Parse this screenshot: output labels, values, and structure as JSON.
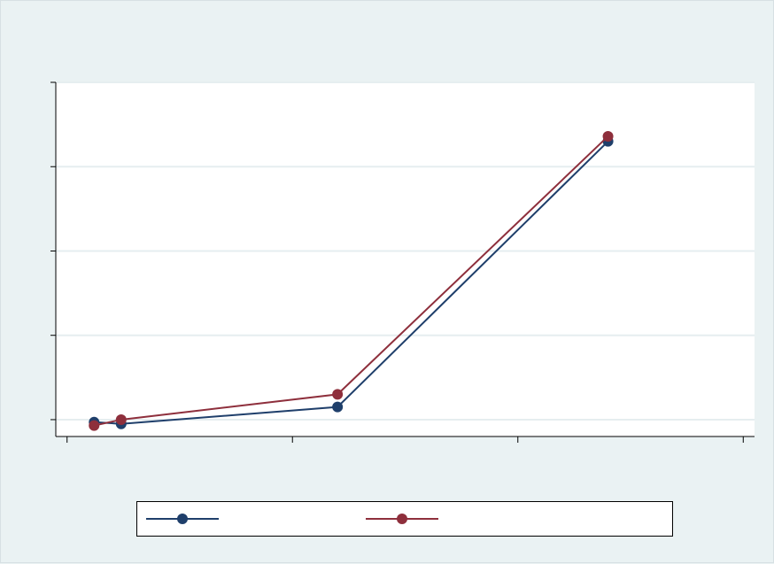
{
  "chart_data": {
    "type": "line",
    "title": "",
    "xlabel": "",
    "ylabel": "",
    "xlim": [
      -0.05,
      3.05
    ],
    "ylim": [
      -0.2,
      4.0
    ],
    "grid": true,
    "legend_position": "bottom",
    "x_ticks": [
      0,
      1,
      2,
      3
    ],
    "y_ticks": [
      0,
      1,
      2,
      3,
      4
    ],
    "series": [
      {
        "color": "#1f3f6b",
        "points": [
          [
            0.12,
            -0.03
          ],
          [
            0.24,
            -0.05
          ],
          [
            1.2,
            0.15
          ],
          [
            2.4,
            3.3
          ]
        ]
      },
      {
        "color": "#8e2f3c",
        "points": [
          [
            0.12,
            -0.07
          ],
          [
            0.24,
            0.0
          ],
          [
            1.2,
            0.3
          ],
          [
            2.4,
            3.36
          ]
        ]
      }
    ]
  }
}
